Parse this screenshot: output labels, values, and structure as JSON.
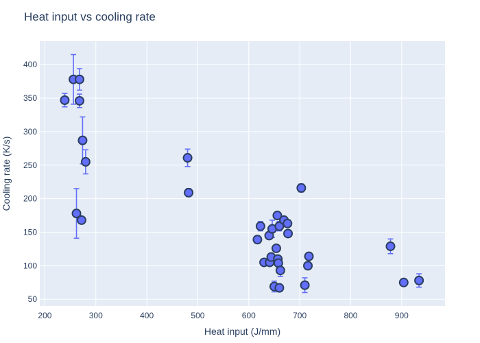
{
  "chart_data": {
    "type": "scatter",
    "title": "Heat input vs cooling rate",
    "xlabel": "Heat input (J/mm)",
    "ylabel": "Cooling rate (K/s)",
    "xlim": [
      190,
      985
    ],
    "ylim": [
      40,
      435
    ],
    "xticks": [
      200,
      300,
      400,
      500,
      600,
      700,
      800,
      900
    ],
    "yticks": [
      50,
      100,
      150,
      200,
      250,
      300,
      350,
      400
    ],
    "grid": true,
    "colors": {
      "plot_bg": "#e5ecf6",
      "grid": "#ffffff",
      "marker": "#636efa",
      "marker_edge": "#2a3f5f",
      "error_bar": "#636efa",
      "text": "#2a3f5f"
    },
    "points": [
      {
        "x": 239,
        "y": 347,
        "err": 10
      },
      {
        "x": 256,
        "y": 378,
        "err": 37
      },
      {
        "x": 268,
        "y": 378,
        "err": 16
      },
      {
        "x": 268,
        "y": 346,
        "err": 10
      },
      {
        "x": 274,
        "y": 287,
        "err": 35
      },
      {
        "x": 280,
        "y": 255,
        "err": 18
      },
      {
        "x": 262,
        "y": 178,
        "err": 37
      },
      {
        "x": 272,
        "y": 168,
        "err": 0
      },
      {
        "x": 480,
        "y": 261,
        "err": 13
      },
      {
        "x": 482,
        "y": 209,
        "err": 6
      },
      {
        "x": 617,
        "y": 139,
        "err": 0
      },
      {
        "x": 623,
        "y": 159,
        "err": 7
      },
      {
        "x": 630,
        "y": 105,
        "err": 0
      },
      {
        "x": 640,
        "y": 145,
        "err": 0
      },
      {
        "x": 641,
        "y": 105,
        "err": 0
      },
      {
        "x": 644,
        "y": 113,
        "err": 0
      },
      {
        "x": 646,
        "y": 155,
        "err": 13
      },
      {
        "x": 650,
        "y": 69,
        "err": 8
      },
      {
        "x": 654,
        "y": 126,
        "err": 0
      },
      {
        "x": 656,
        "y": 175,
        "err": 0
      },
      {
        "x": 657,
        "y": 110,
        "err": 0
      },
      {
        "x": 658,
        "y": 104,
        "err": 0
      },
      {
        "x": 660,
        "y": 159,
        "err": 7
      },
      {
        "x": 660,
        "y": 67,
        "err": 0
      },
      {
        "x": 662,
        "y": 93,
        "err": 9
      },
      {
        "x": 669,
        "y": 168,
        "err": 0
      },
      {
        "x": 676,
        "y": 163,
        "err": 0
      },
      {
        "x": 677,
        "y": 148,
        "err": 0
      },
      {
        "x": 703,
        "y": 216,
        "err": 6
      },
      {
        "x": 710,
        "y": 71,
        "err": 11
      },
      {
        "x": 716,
        "y": 100,
        "err": 0
      },
      {
        "x": 718,
        "y": 114,
        "err": 0
      },
      {
        "x": 878,
        "y": 129,
        "err": 11
      },
      {
        "x": 904,
        "y": 75,
        "err": 0
      },
      {
        "x": 934,
        "y": 78,
        "err": 10
      }
    ]
  }
}
